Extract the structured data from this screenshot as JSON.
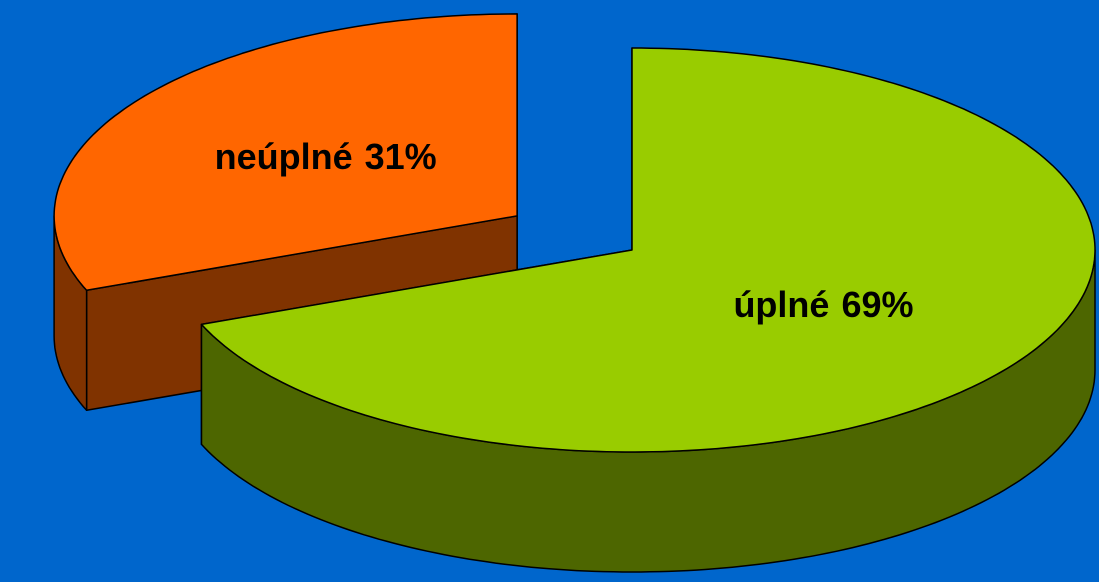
{
  "chart_data": {
    "type": "pie3d",
    "categories": [
      "neúplné",
      "úplné"
    ],
    "values": [
      31,
      69
    ],
    "value_labels": [
      "31%",
      "69%"
    ],
    "colors": [
      "#ff6600",
      "#99cc00"
    ]
  }
}
